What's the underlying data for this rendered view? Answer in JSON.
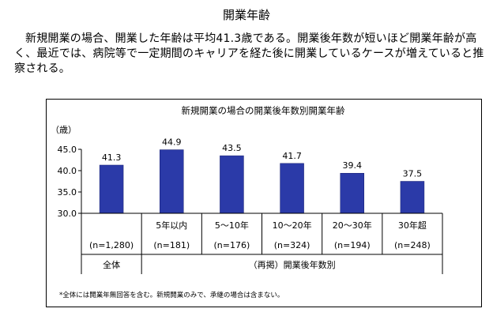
{
  "page": {
    "title": "開業年齢",
    "description": "新規開業の場合、開業した年齢は平均41.3歳である。開業後年数が短いほど開業年齢が高く、最近では、病院等で一定期間のキャリアを経た後に開業しているケースが増えていると推察される。",
    "footnote": "*全体には開業年無回答を含む。新規開業のみで、承継の場合は含まない。"
  },
  "chart_data": {
    "type": "bar",
    "title": "新規開業の場合の開業後年数別開業年齢",
    "ylabel": "（歳）",
    "ylim": [
      30.0,
      45.0
    ],
    "yticks": [
      "45.0",
      "40.0",
      "35.0",
      "30.0"
    ],
    "categories": [
      "",
      "5年以内",
      "5～10年",
      "10～20年",
      "20～30年",
      "30年超"
    ],
    "counts": [
      "(n=1,280)",
      "(n=181)",
      "(n=176)",
      "(n=324)",
      "(n=194)",
      "(n=248)"
    ],
    "values": [
      41.3,
      44.9,
      43.5,
      41.7,
      39.4,
      37.5
    ],
    "value_labels": [
      "41.3",
      "44.9",
      "43.5",
      "41.7",
      "39.4",
      "37.5"
    ],
    "group_labels": {
      "total": "全体",
      "by_years": "（再掲）開業後年数別"
    },
    "bar_color": "#2b3aa8"
  }
}
